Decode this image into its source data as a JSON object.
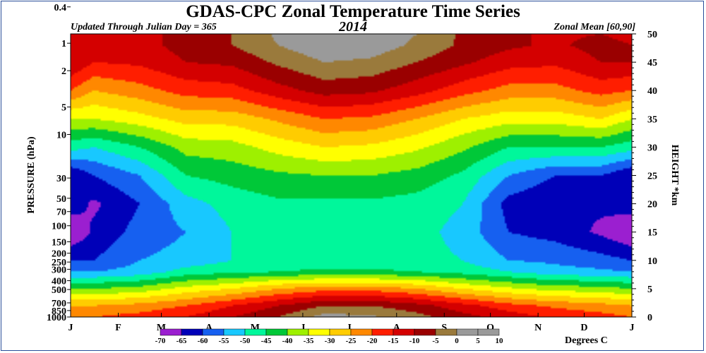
{
  "header": {
    "title": "GDAS-CPC Zonal Temperature Time Series",
    "year": "2014",
    "updated": "Updated Through Julian Day = 365",
    "zonal_mean": "Zonal Mean [60,90]"
  },
  "chart_data": {
    "type": "heatmap",
    "title": "GDAS-CPC Zonal Temperature Time Series",
    "subtitle": "2014",
    "ylabel": "PRESSURE (hPa)",
    "y2label": "HEIGHT *km",
    "colorbar_label": "Degrees C",
    "x_ticks": [
      "J",
      "F",
      "M",
      "A",
      "M",
      "J",
      "J",
      "A",
      "S",
      "O",
      "N",
      "D",
      "J"
    ],
    "x_tick_days": [
      0,
      31,
      59,
      90,
      120,
      151,
      181,
      212,
      243,
      273,
      304,
      334,
      365
    ],
    "xlim": [
      0,
      365
    ],
    "pressure_ticks": [
      "0.4",
      "1",
      "2",
      "5",
      "10",
      "30",
      "50",
      "70",
      "100",
      "150",
      "200",
      "250",
      "300",
      "400",
      "500",
      "700",
      "850",
      "1000"
    ],
    "pressure_values": [
      0.4,
      1,
      2,
      5,
      10,
      30,
      50,
      70,
      100,
      150,
      200,
      250,
      300,
      400,
      500,
      700,
      850,
      1000
    ],
    "height_ticks": [
      "0",
      "5",
      "10",
      "15",
      "20",
      "25",
      "30",
      "35",
      "40",
      "45",
      "50"
    ],
    "height_values": [
      0,
      5,
      10,
      15,
      20,
      25,
      30,
      35,
      40,
      45,
      50
    ],
    "ylim_height_km": [
      0,
      50
    ],
    "colorbar_levels": [
      "-70",
      "-65",
      "-60",
      "-55",
      "-50",
      "-45",
      "-40",
      "-35",
      "-30",
      "-25",
      "-20",
      "-15",
      "-10",
      "-5",
      "0",
      "5",
      "10"
    ],
    "colorbar_colors": [
      "#9b1fd0",
      "#0000b8",
      "#1660f0",
      "#18c8ff",
      "#00f79b",
      "#00c838",
      "#9ef000",
      "#ffff00",
      "#ffcc00",
      "#ff8800",
      "#ff1e00",
      "#d40000",
      "#9a0000",
      "#9a7a3c",
      "#9a9a9a",
      "#9a9a9a"
    ],
    "profiles": {
      "height_km": [
        0,
        2,
        5,
        8,
        10,
        15,
        20,
        25,
        30,
        35,
        40,
        45,
        48,
        50
      ],
      "day": [
        0,
        15,
        45,
        75,
        105,
        135,
        165,
        195,
        225,
        255,
        285,
        315,
        345,
        365
      ],
      "temperature_c": [
        [
          -20,
          -25,
          -40,
          -55,
          -60,
          -70,
          -62,
          -65,
          -48,
          -35,
          -20,
          -10,
          -10,
          -12
        ],
        [
          -20,
          -25,
          -40,
          -55,
          -60,
          -64,
          -66,
          -60,
          -50,
          -35,
          -25,
          -15,
          -12,
          -12
        ],
        [
          -18,
          -23,
          -38,
          -53,
          -55,
          -58,
          -60,
          -55,
          -45,
          -32,
          -22,
          -14,
          -12,
          -12
        ],
        [
          -15,
          -20,
          -33,
          -48,
          -53,
          -55,
          -52,
          -45,
          -38,
          -28,
          -18,
          -10,
          -8,
          -8
        ],
        [
          -10,
          -15,
          -30,
          -46,
          -50,
          -50,
          -48,
          -43,
          -37,
          -28,
          -17,
          -9,
          -5,
          -5
        ],
        [
          -5,
          -10,
          -25,
          -45,
          -48,
          -48,
          -46,
          -41,
          -33,
          -24,
          -12,
          -4,
          0,
          1
        ],
        [
          2,
          -5,
          -22,
          -44,
          -48,
          -48,
          -46,
          -40,
          -30,
          -20,
          -8,
          0,
          4,
          5
        ],
        [
          1,
          -5,
          -22,
          -44,
          -48,
          -48,
          -46,
          -40,
          -31,
          -21,
          -9,
          -1,
          3,
          4
        ],
        [
          -3,
          -8,
          -25,
          -45,
          -48,
          -48,
          -47,
          -42,
          -34,
          -25,
          -13,
          -5,
          -1,
          0
        ],
        [
          -8,
          -13,
          -30,
          -47,
          -50,
          -52,
          -50,
          -46,
          -39,
          -30,
          -18,
          -9,
          -6,
          -6
        ],
        [
          -12,
          -18,
          -34,
          -50,
          -55,
          -60,
          -62,
          -55,
          -45,
          -33,
          -22,
          -13,
          -9,
          -9
        ],
        [
          -16,
          -21,
          -37,
          -53,
          -56,
          -62,
          -65,
          -60,
          -45,
          -33,
          -22,
          -14,
          -11,
          -11
        ],
        [
          -18,
          -23,
          -38,
          -54,
          -58,
          -66,
          -64,
          -60,
          -45,
          -30,
          -18,
          -10,
          -8,
          -10
        ],
        [
          -20,
          -25,
          -40,
          -55,
          -60,
          -70,
          -62,
          -65,
          -48,
          -35,
          -20,
          -10,
          -10,
          -12
        ]
      ]
    }
  }
}
